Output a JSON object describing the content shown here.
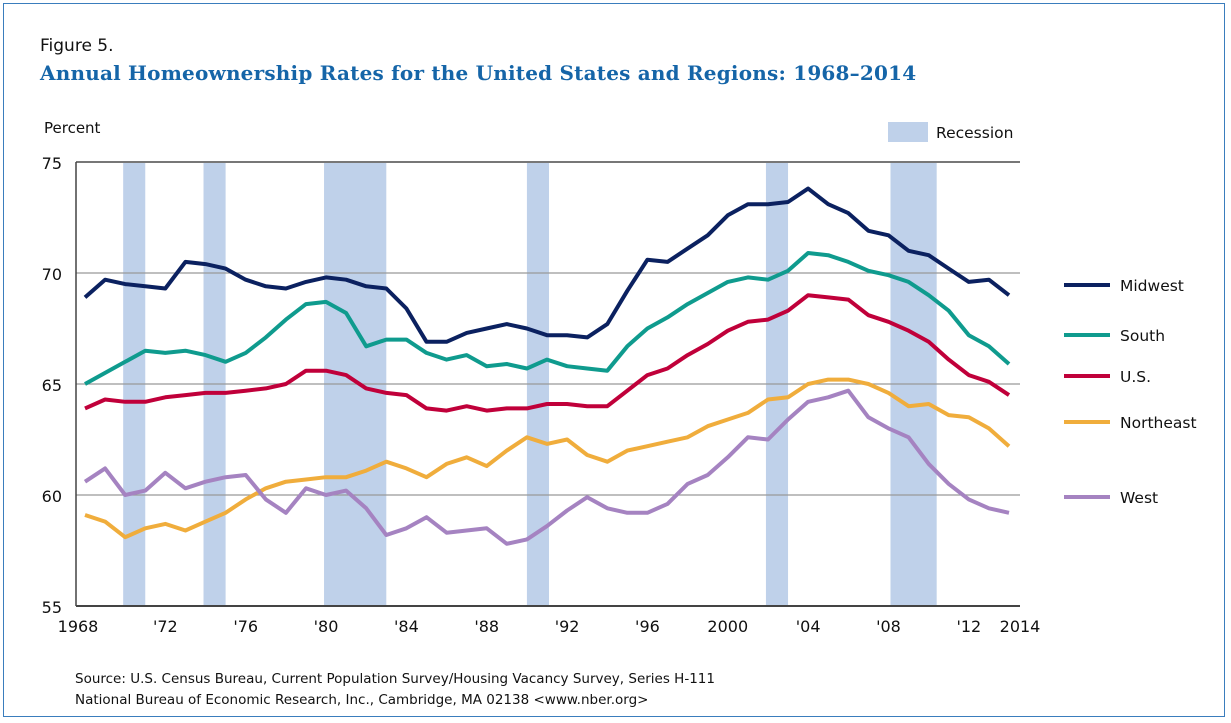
{
  "figure_label": "Figure 5.",
  "title": "Annual Homeownership Rates for the United States and Regions: 1968–2014",
  "source_lines": [
    "Source: U.S. Census Bureau, Current Population Survey/Housing Vacancy Survey, Series H-111",
    "National Bureau of Economic Research, Inc., Cambridge, MA 02138 <www.nber.org>"
  ],
  "chart_data": {
    "type": "line",
    "title": "Annual Homeownership Rates for the United States and Regions: 1968–2014",
    "xlabel": "",
    "ylabel": "Percent",
    "ylim": [
      55,
      75
    ],
    "xlim": [
      1968,
      2014
    ],
    "yticks": [
      55,
      60,
      65,
      70,
      75
    ],
    "xtick_values": [
      1968,
      1972,
      1976,
      1980,
      1984,
      1988,
      1992,
      1996,
      2000,
      2004,
      2008,
      2012,
      2014
    ],
    "xtick_labels": [
      "1968",
      "'72",
      "'76",
      "'80",
      "'84",
      "'88",
      "'92",
      "'96",
      "2000",
      "'04",
      "'08",
      "'12",
      "2014"
    ],
    "grid": "horizontal",
    "legend_position": "right",
    "recession_label": "Recession",
    "recession_color": "#bfd1ea",
    "recessions": [
      [
        1969.9,
        1971.0
      ],
      [
        1973.9,
        1975.0
      ],
      [
        1979.9,
        1983.0
      ],
      [
        1990.0,
        1991.1
      ],
      [
        2001.9,
        2003.0
      ],
      [
        2008.1,
        2010.4
      ]
    ],
    "x": [
      1968,
      1969,
      1970,
      1971,
      1972,
      1973,
      1974,
      1975,
      1976,
      1977,
      1978,
      1979,
      1980,
      1981,
      1982,
      1983,
      1984,
      1985,
      1986,
      1987,
      1988,
      1989,
      1990,
      1991,
      1992,
      1993,
      1994,
      1995,
      1996,
      1997,
      1998,
      1999,
      2000,
      2001,
      2002,
      2003,
      2004,
      2005,
      2006,
      2007,
      2008,
      2009,
      2010,
      2011,
      2012,
      2013,
      2014
    ],
    "series": [
      {
        "name": "Midwest",
        "color": "#0b2160",
        "values": [
          68.9,
          69.7,
          69.5,
          69.4,
          69.3,
          70.5,
          70.4,
          70.2,
          69.7,
          69.4,
          69.3,
          69.6,
          69.8,
          69.7,
          69.4,
          69.3,
          68.4,
          66.9,
          66.9,
          67.3,
          67.5,
          67.7,
          67.5,
          67.2,
          67.2,
          67.1,
          67.7,
          69.2,
          70.6,
          70.5,
          71.1,
          71.7,
          72.6,
          73.1,
          73.1,
          73.2,
          73.8,
          73.1,
          72.7,
          71.9,
          71.7,
          71.0,
          70.8,
          70.2,
          69.6,
          69.7,
          69.0
        ]
      },
      {
        "name": "South",
        "color": "#0f9b8e",
        "values": [
          65.0,
          65.5,
          66.0,
          66.5,
          66.4,
          66.5,
          66.3,
          66.0,
          66.4,
          67.1,
          67.9,
          68.6,
          68.7,
          68.2,
          66.7,
          67.0,
          67.0,
          66.4,
          66.1,
          66.3,
          65.8,
          65.9,
          65.7,
          66.1,
          65.8,
          65.7,
          65.6,
          66.7,
          67.5,
          68.0,
          68.6,
          69.1,
          69.6,
          69.8,
          69.7,
          70.1,
          70.9,
          70.8,
          70.5,
          70.1,
          69.9,
          69.6,
          69.0,
          68.3,
          67.2,
          66.7,
          65.9
        ]
      },
      {
        "name": "U.S.",
        "color": "#c0003a",
        "values": [
          63.9,
          64.3,
          64.2,
          64.2,
          64.4,
          64.5,
          64.6,
          64.6,
          64.7,
          64.8,
          65.0,
          65.6,
          65.6,
          65.4,
          64.8,
          64.6,
          64.5,
          63.9,
          63.8,
          64.0,
          63.8,
          63.9,
          63.9,
          64.1,
          64.1,
          64.0,
          64.0,
          64.7,
          65.4,
          65.7,
          66.3,
          66.8,
          67.4,
          67.8,
          67.9,
          68.3,
          69.0,
          68.9,
          68.8,
          68.1,
          67.8,
          67.4,
          66.9,
          66.1,
          65.4,
          65.1,
          64.5
        ]
      },
      {
        "name": "Northeast",
        "color": "#f0ad3c",
        "values": [
          59.1,
          58.8,
          58.1,
          58.5,
          58.7,
          58.4,
          58.8,
          59.2,
          59.8,
          60.3,
          60.6,
          60.7,
          60.8,
          60.8,
          61.1,
          61.5,
          61.2,
          60.8,
          61.4,
          61.7,
          61.3,
          62.0,
          62.6,
          62.3,
          62.5,
          61.8,
          61.5,
          62.0,
          62.2,
          62.4,
          62.6,
          63.1,
          63.4,
          63.7,
          64.3,
          64.4,
          65.0,
          65.2,
          65.2,
          65.0,
          64.6,
          64.0,
          64.1,
          63.6,
          63.5,
          63.0,
          62.2
        ]
      },
      {
        "name": "West",
        "color": "#a583c1",
        "values": [
          60.6,
          61.2,
          60.0,
          60.2,
          61.0,
          60.3,
          60.6,
          60.8,
          60.9,
          59.8,
          59.2,
          60.3,
          60.0,
          60.2,
          59.4,
          58.2,
          58.5,
          59.0,
          58.3,
          58.4,
          58.5,
          57.8,
          58.0,
          58.6,
          59.3,
          59.9,
          59.4,
          59.2,
          59.2,
          59.6,
          60.5,
          60.9,
          61.7,
          62.6,
          62.5,
          63.4,
          64.2,
          64.4,
          64.7,
          63.5,
          63.0,
          62.6,
          61.4,
          60.5,
          59.8,
          59.4,
          59.2
        ]
      }
    ]
  }
}
